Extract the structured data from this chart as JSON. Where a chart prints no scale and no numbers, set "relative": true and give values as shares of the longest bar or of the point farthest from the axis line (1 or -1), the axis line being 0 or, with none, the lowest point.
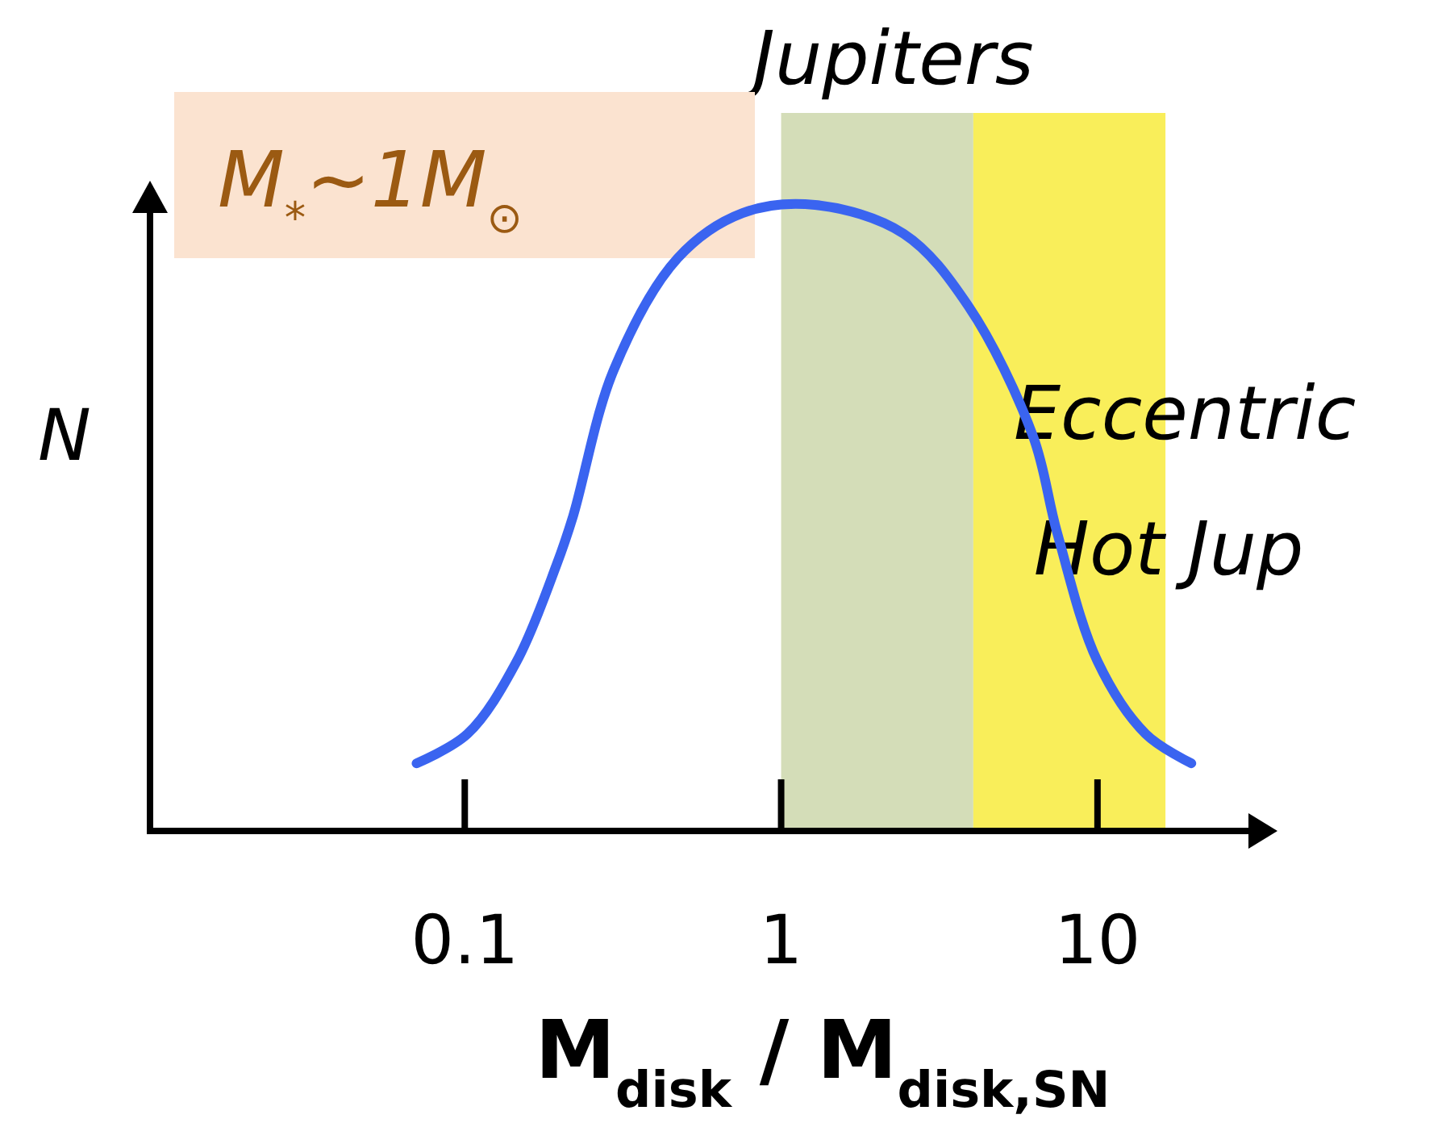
{
  "chart_data": {
    "type": "line",
    "relative": true,
    "log": "x",
    "xlabel": "M$_{disk}$ / M$_{disk,SN}$",
    "ylabel": "N",
    "xlim": [
      0.01,
      30
    ],
    "xticks": [
      {
        "value": 0.1,
        "label": "0.1"
      },
      1,
      10
    ],
    "x": [
      0.0704,
      0.102,
      0.146,
      0.195,
      0.22,
      0.295,
      0.471,
      0.755,
      1.28,
      2.44,
      3.91,
      6.25,
      7.45,
      10,
      14.2,
      19.8
    ],
    "series": [
      {
        "color": "#3a64f0",
        "values": [
          0.108,
          0.155,
          0.271,
          0.425,
          0.503,
          0.735,
          0.915,
          0.987,
          1,
          0.954,
          0.838,
          0.631,
          0.477,
          0.271,
          0.155,
          0.108
        ]
      }
    ],
    "bands": [
      {
        "axis": "x",
        "from": 1,
        "to": 4.05,
        "label": "Jupiters",
        "color": "#d4ddb8"
      },
      {
        "axis": "x",
        "from": 4.05,
        "to": 16.4,
        "label": "Eccentric Hot Jup",
        "color": "#f9ee5a"
      }
    ],
    "annotations": [
      "M$_{*}$~1M$_{⊙}$"
    ]
  }
}
